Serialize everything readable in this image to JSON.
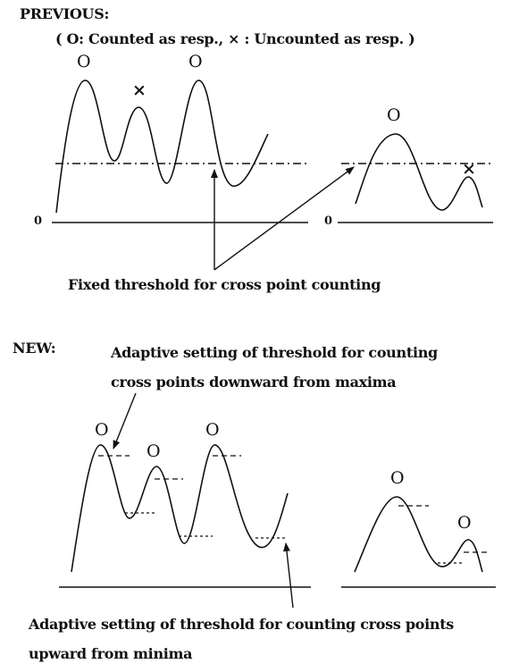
{
  "previous": {
    "heading": "PREVIOUS:",
    "legend": "( O: Counted as resp.,  × : Uncounted as resp. )",
    "zero_left": "0",
    "zero_right": "0",
    "marker_counted": "O",
    "marker_uncounted": "×",
    "caption": "Fixed threshold for cross point counting"
  },
  "new": {
    "heading": "NEW:",
    "label_max_line1": "Adaptive setting of threshold for counting",
    "label_max_line2": "cross points downward from maxima",
    "label_min_line1": "Adaptive setting of threshold for counting cross points",
    "label_min_line2": "upward from minima",
    "marker_counted": "O"
  },
  "colors": {
    "ink": "#111111",
    "background": "#ffffff"
  }
}
